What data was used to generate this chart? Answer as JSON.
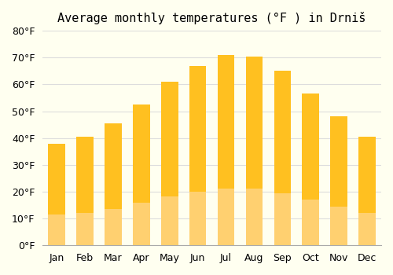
{
  "title": "Average monthly temperatures (°F ) in Drniš",
  "months": [
    "Jan",
    "Feb",
    "Mar",
    "Apr",
    "May",
    "Jun",
    "Jul",
    "Aug",
    "Sep",
    "Oct",
    "Nov",
    "Dec"
  ],
  "values": [
    38,
    40.5,
    45.5,
    52.5,
    61,
    67,
    71,
    70.5,
    65,
    56.5,
    48,
    40.5
  ],
  "bar_color_top": "#FFC020",
  "bar_color_bottom": "#FFD070",
  "background_color": "#FFFFF0",
  "grid_color": "#DDDDDD",
  "ylim": [
    0,
    80
  ],
  "yticks": [
    0,
    10,
    20,
    30,
    40,
    50,
    60,
    70,
    80
  ],
  "title_fontsize": 11,
  "tick_fontsize": 9
}
